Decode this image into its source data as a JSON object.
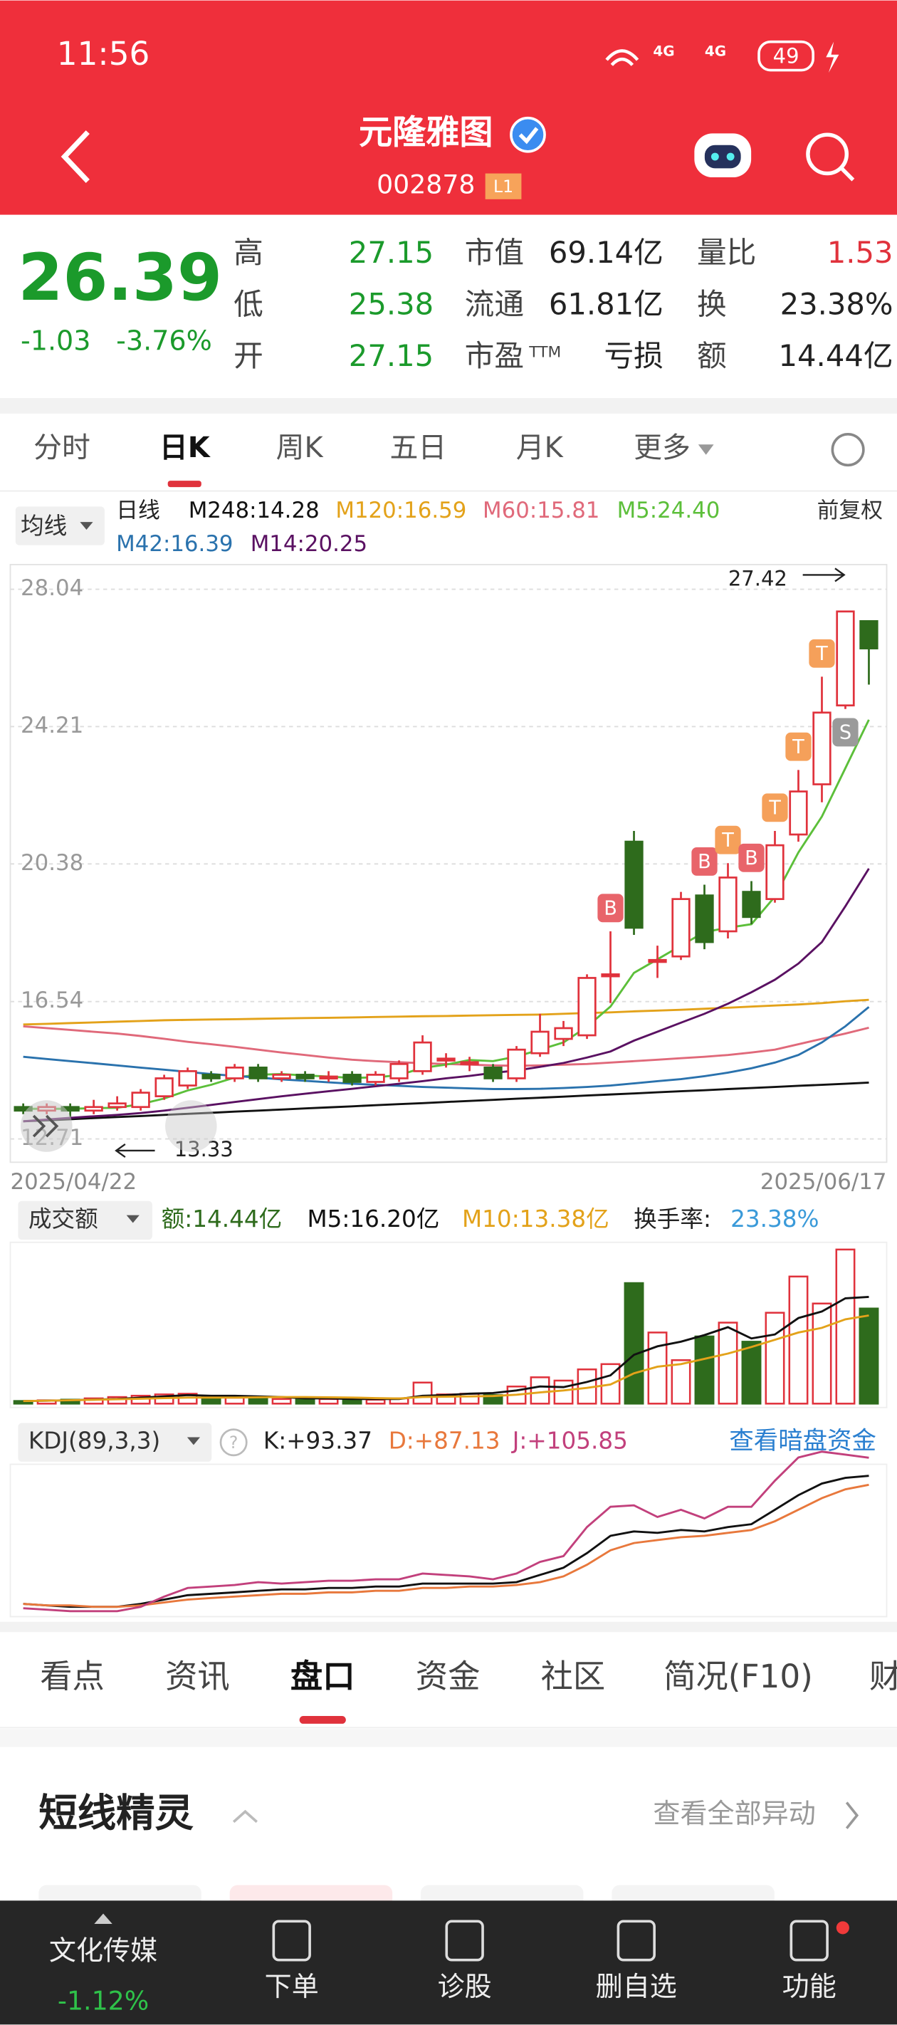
{
  "status_bar": {
    "time": "11:56",
    "network": [
      "4G",
      "4G"
    ],
    "battery": "49"
  },
  "header": {
    "title": "元隆雅图",
    "code": "002878",
    "badge": "L1"
  },
  "quote": {
    "price": "26.39",
    "change": "-1.03",
    "change_pct": "-3.76%",
    "stats": [
      {
        "label": "高",
        "value": "27.15"
      },
      {
        "label": "低",
        "value": "25.38"
      },
      {
        "label": "开",
        "value": "27.15"
      },
      {
        "label": "市值",
        "value": "69.14亿"
      },
      {
        "label": "流通",
        "value": "61.81亿"
      },
      {
        "label": "市盈",
        "sup": "TTM",
        "value": "亏损"
      },
      {
        "label": "量比",
        "value": "1.53"
      },
      {
        "label": "换",
        "value": "23.38%"
      },
      {
        "label": "额",
        "value": "14.44亿"
      }
    ]
  },
  "period_tabs": [
    "分时",
    "日K",
    "周K",
    "五日",
    "月K",
    "更多"
  ],
  "chart_data": [
    {
      "type": "candlestick",
      "ma_selector": "均线",
      "legend_title": "日线",
      "adjust": "前复权",
      "categories": [
        "2025/04/22",
        null,
        null,
        null,
        null,
        null,
        null,
        null,
        null,
        null,
        null,
        null,
        null,
        null,
        null,
        null,
        null,
        null,
        null,
        null,
        null,
        null,
        null,
        null,
        null,
        null,
        null,
        null,
        null,
        null,
        null,
        null,
        null,
        null,
        null,
        null,
        "2025/06/17"
      ],
      "open": [
        13.6,
        13.5,
        13.6,
        13.5,
        13.6,
        13.6,
        13.9,
        14.2,
        14.5,
        14.4,
        14.7,
        14.4,
        14.5,
        14.4,
        14.5,
        14.3,
        14.4,
        14.6,
        14.9,
        14.8,
        14.7,
        14.4,
        15.1,
        15.5,
        15.6,
        17.3,
        21.0,
        17.7,
        17.8,
        19.5,
        18.5,
        19.6,
        19.4,
        21.2,
        22.6,
        24.8,
        27.15
      ],
      "close": [
        13.5,
        13.6,
        13.5,
        13.6,
        13.7,
        14.0,
        14.4,
        14.6,
        14.4,
        14.7,
        14.4,
        14.5,
        14.4,
        14.45,
        14.3,
        14.5,
        14.8,
        15.4,
        14.95,
        14.85,
        14.4,
        15.2,
        15.7,
        15.8,
        17.2,
        17.3,
        18.6,
        17.7,
        19.4,
        18.2,
        20.0,
        18.9,
        20.9,
        22.4,
        24.6,
        27.42,
        26.39
      ],
      "high": [
        13.7,
        13.7,
        13.7,
        13.8,
        13.9,
        14.1,
        14.5,
        14.7,
        14.6,
        14.8,
        14.8,
        14.6,
        14.6,
        14.6,
        14.6,
        14.6,
        14.9,
        15.6,
        15.1,
        15.0,
        14.8,
        15.3,
        16.2,
        16.0,
        17.3,
        18.5,
        21.3,
        18.1,
        19.6,
        19.8,
        20.4,
        19.9,
        21.3,
        23.0,
        25.6,
        27.42,
        27.15
      ],
      "low": [
        13.4,
        13.4,
        13.33,
        13.4,
        13.5,
        13.5,
        13.8,
        14.1,
        14.3,
        14.3,
        14.3,
        14.3,
        14.3,
        14.3,
        14.2,
        14.2,
        14.3,
        14.5,
        14.7,
        14.6,
        14.3,
        14.3,
        15.0,
        15.3,
        15.5,
        16.5,
        18.4,
        17.2,
        17.7,
        18.0,
        18.3,
        18.7,
        19.3,
        21.0,
        22.1,
        24.7,
        25.38
      ],
      "up_color": "#e0323c",
      "down_color": "#2e6b1c",
      "ylim": [
        12.06,
        28.62
      ],
      "yticks": [
        28.04,
        24.21,
        20.38,
        16.54,
        12.71
      ],
      "grid": true,
      "series": [
        {
          "name": "M248:14.28",
          "color": "#111111",
          "values": [
            13.2,
            13.23,
            13.26,
            13.29,
            13.32,
            13.35,
            13.38,
            13.41,
            13.44,
            13.47,
            13.5,
            13.53,
            13.56,
            13.59,
            13.62,
            13.65,
            13.68,
            13.71,
            13.74,
            13.77,
            13.8,
            13.83,
            13.86,
            13.89,
            13.92,
            13.95,
            13.98,
            14.01,
            14.04,
            14.07,
            14.1,
            14.13,
            14.16,
            14.19,
            14.22,
            14.25,
            14.28
          ]
        },
        {
          "name": "M120:16.59",
          "color": "#e3a21a",
          "values": [
            15.9,
            15.92,
            15.94,
            15.96,
            15.98,
            16.0,
            16.02,
            16.03,
            16.04,
            16.05,
            16.06,
            16.07,
            16.08,
            16.09,
            16.1,
            16.11,
            16.12,
            16.13,
            16.14,
            16.15,
            16.16,
            16.17,
            16.18,
            16.2,
            16.22,
            16.24,
            16.27,
            16.29,
            16.31,
            16.34,
            16.37,
            16.4,
            16.43,
            16.46,
            16.5,
            16.55,
            16.59
          ]
        },
        {
          "name": "M60:15.81",
          "color": "#e0697a",
          "values": [
            15.85,
            15.8,
            15.75,
            15.7,
            15.65,
            15.58,
            15.5,
            15.42,
            15.35,
            15.28,
            15.2,
            15.12,
            15.05,
            14.98,
            14.92,
            14.88,
            14.85,
            14.82,
            14.8,
            14.78,
            14.76,
            14.75,
            14.76,
            14.78,
            14.8,
            14.84,
            14.88,
            14.92,
            14.96,
            15.0,
            15.05,
            15.12,
            15.2,
            15.35,
            15.5,
            15.65,
            15.81
          ]
        },
        {
          "name": "M5:24.40",
          "color": "#5cbf3a",
          "values": [
            13.55,
            13.55,
            13.55,
            13.57,
            13.58,
            13.68,
            13.84,
            14.06,
            14.22,
            14.42,
            14.5,
            14.52,
            14.48,
            14.45,
            14.41,
            14.43,
            14.49,
            14.69,
            14.78,
            14.91,
            14.88,
            15.01,
            15.2,
            15.4,
            15.84,
            16.4,
            17.34,
            17.72,
            18.1,
            18.48,
            18.6,
            18.7,
            19.47,
            20.7,
            21.7,
            23.05,
            24.4
          ]
        },
        {
          "name": "M42:16.39",
          "color": "#2a72ad",
          "values": [
            15.0,
            14.94,
            14.88,
            14.82,
            14.76,
            14.7,
            14.64,
            14.58,
            14.52,
            14.47,
            14.42,
            14.37,
            14.33,
            14.29,
            14.25,
            14.22,
            14.19,
            14.16,
            14.14,
            14.12,
            14.1,
            14.1,
            14.11,
            14.13,
            14.16,
            14.2,
            14.26,
            14.32,
            14.38,
            14.46,
            14.56,
            14.68,
            14.84,
            15.05,
            15.4,
            15.85,
            16.39
          ]
        },
        {
          "name": "M14:20.25",
          "color": "#5a1162",
          "values": [
            13.2,
            13.25,
            13.3,
            13.34,
            13.38,
            13.43,
            13.5,
            13.58,
            13.66,
            13.74,
            13.82,
            13.9,
            13.97,
            14.04,
            14.11,
            14.18,
            14.25,
            14.32,
            14.4,
            14.47,
            14.55,
            14.62,
            14.72,
            14.83,
            14.98,
            15.15,
            15.45,
            15.7,
            15.95,
            16.2,
            16.48,
            16.8,
            17.15,
            17.6,
            18.2,
            19.2,
            20.25
          ]
        }
      ],
      "signals": [
        null,
        null,
        null,
        null,
        null,
        null,
        null,
        null,
        null,
        null,
        null,
        null,
        null,
        null,
        null,
        null,
        null,
        null,
        null,
        null,
        null,
        null,
        null,
        null,
        null,
        "B",
        null,
        null,
        null,
        "B",
        "T",
        "B",
        "T",
        "T",
        "T",
        "S",
        null
      ],
      "annotations": [
        {
          "label": "27.42"
        },
        {
          "label": "13.33"
        }
      ]
    },
    {
      "type": "bar",
      "selector": "成交额",
      "turnover": {
        "label": "换手率:",
        "value": "23.38%"
      },
      "ylim": [
        0,
        24.5
      ],
      "series": [
        {
          "name": "额:14.44亿",
          "mark": "bar",
          "color": "#2e6b1c",
          "values": [
            0.4,
            0.5,
            0.6,
            0.8,
            1.0,
            1.2,
            1.4,
            1.5,
            1.0,
            0.9,
            0.8,
            0.7,
            0.8,
            0.7,
            0.6,
            0.6,
            0.8,
            3.2,
            1.4,
            1.5,
            1.3,
            2.6,
            4.0,
            3.5,
            5.2,
            6.0,
            18.3,
            10.8,
            6.6,
            10.2,
            12.3,
            9.4,
            13.8,
            19.3,
            15.2,
            23.4,
            14.44
          ]
        },
        {
          "name": "M5:16.20亿",
          "mark": "line",
          "color": "#111111",
          "values": [
            0.4,
            0.45,
            0.5,
            0.6,
            0.7,
            0.9,
            1.1,
            1.3,
            1.2,
            1.2,
            1.1,
            1.0,
            0.8,
            0.8,
            0.7,
            0.7,
            0.7,
            1.2,
            1.3,
            1.5,
            1.6,
            2.0,
            2.6,
            2.5,
            3.3,
            4.3,
            7.4,
            8.7,
            9.4,
            10.4,
            11.6,
            9.9,
            10.5,
            13.0,
            14.0,
            16.0,
            16.2
          ]
        },
        {
          "name": "M10:13.38亿",
          "mark": "line",
          "color": "#e3a21a",
          "values": [
            0.4,
            0.45,
            0.5,
            0.58,
            0.66,
            0.75,
            0.84,
            0.93,
            0.93,
            0.93,
            0.97,
            1.0,
            1.0,
            0.96,
            0.92,
            0.84,
            0.78,
            1.0,
            1.05,
            1.1,
            1.15,
            1.35,
            1.7,
            2.0,
            2.4,
            2.9,
            4.6,
            5.6,
            6.0,
            6.8,
            7.6,
            8.6,
            9.7,
            10.8,
            11.5,
            12.8,
            13.38
          ]
        }
      ]
    },
    {
      "type": "line",
      "selector": "KDJ(89,3,3)",
      "link": "查看暗盘资金",
      "ylim": [
        -2,
        112
      ],
      "series": [
        {
          "name": "K:+93.37",
          "color": "#111111",
          "values": [
            5,
            4,
            3,
            3,
            3,
            5,
            8,
            11,
            12,
            13,
            14,
            15,
            15,
            16,
            16,
            17,
            17,
            19,
            19,
            19,
            19,
            20,
            25,
            30,
            40,
            52,
            55,
            54,
            56,
            55,
            58,
            60,
            70,
            80,
            88,
            92,
            93.37
          ]
        },
        {
          "name": "D:+87.13",
          "color": "#e8783c",
          "values": [
            5,
            4,
            4,
            3,
            3,
            4,
            6,
            8,
            9,
            10,
            11,
            12,
            12,
            13,
            13,
            14,
            14,
            16,
            16,
            17,
            17,
            18,
            20,
            24,
            32,
            42,
            47,
            49,
            51,
            52,
            54,
            56,
            62,
            70,
            78,
            84,
            87.13
          ]
        },
        {
          "name": "J:+105.85",
          "color": "#c2407c",
          "values": [
            2,
            1,
            0,
            0,
            0,
            3,
            10,
            16,
            17,
            18,
            20,
            19,
            20,
            21,
            21,
            22,
            22,
            26,
            25,
            24,
            22,
            26,
            34,
            38,
            58,
            72,
            73,
            65,
            70,
            64,
            72,
            72,
            90,
            106,
            110,
            108,
            105.85
          ]
        }
      ]
    }
  ],
  "info_tabs": [
    "看点",
    "资讯",
    "盘口",
    "资金",
    "社区",
    "简况(F10)",
    "财"
  ],
  "section": {
    "title": "短线精灵",
    "link": "查看全部异动"
  },
  "bottom_bar": {
    "sector": "文化传媒",
    "sector_change": "-1.12%",
    "actions": [
      "下单",
      "诊股",
      "删自选",
      "功能"
    ]
  }
}
